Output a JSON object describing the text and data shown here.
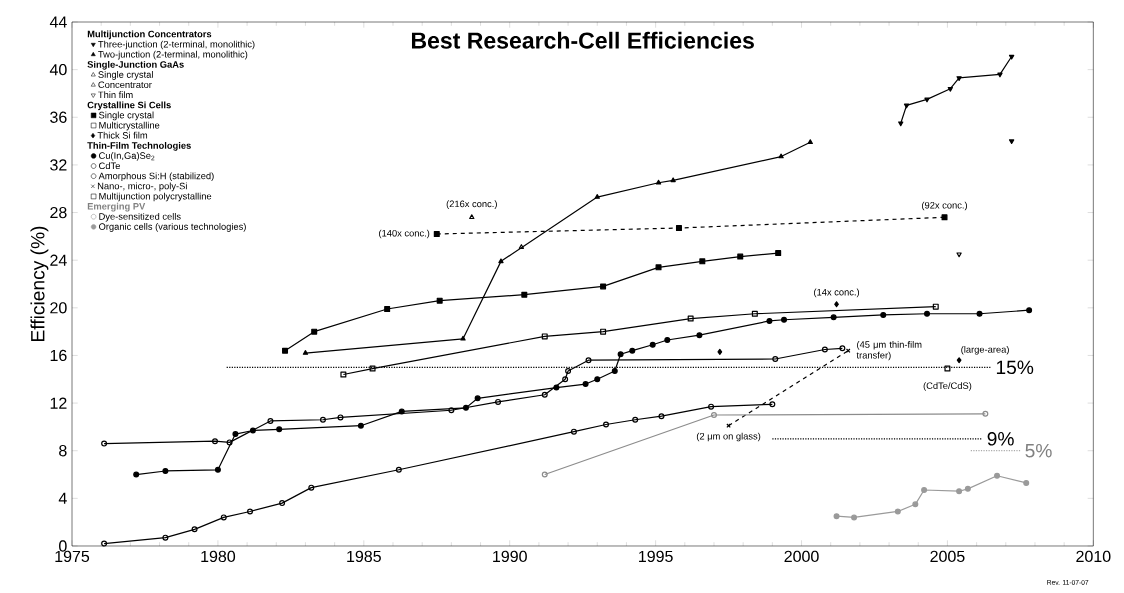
{
  "chart_data": {
    "type": "line",
    "title": "Best Research-Cell Efficiencies",
    "ylabel": "Efficiency (%)",
    "xlim": [
      1975,
      2010
    ],
    "xticks": [
      1975,
      1980,
      1985,
      1990,
      1995,
      2000,
      2005,
      2010
    ],
    "ylim": [
      0,
      44
    ],
    "yticks": [
      0,
      4,
      8,
      12,
      16,
      20,
      24,
      28,
      32,
      36,
      40,
      44
    ],
    "legend": "top left",
    "series": [
      {
        "name": "Three-junction (2-terminal, monolithic)",
        "color": "#000000",
        "marker": "triangle-down",
        "x": [
          2003.4,
          2003.6,
          2004.3,
          2005.1,
          2005.4,
          2006.8,
          2007.2
        ],
        "values": [
          35.5,
          37.0,
          37.5,
          38.4,
          39.3,
          39.6,
          41.1
        ]
      },
      {
        "name": "Two-junction (2-terminal, monolithic)",
        "color": "#000000",
        "marker": "triangle",
        "x": [
          1983.0,
          1988.4,
          1989.7,
          1993.0,
          1995.1,
          1995.6,
          1999.3,
          2000.3
        ],
        "values": [
          16.2,
          17.4,
          23.9,
          29.3,
          30.5,
          30.7,
          32.7,
          33.9
        ]
      },
      {
        "name": "Single crystal",
        "type": "scatter",
        "color": "#000000",
        "marker": "triangle-open",
        "x": [
          1990.4
        ],
        "values": [
          25.1
        ]
      },
      {
        "name": "Concentrator",
        "type": "scatter",
        "color": "#000000",
        "marker": "triangle-open",
        "x": [
          1988.7
        ],
        "values": [
          27.6
        ]
      },
      {
        "name": "Thin film",
        "type": "scatter",
        "color": "#000000",
        "marker": "triangle-down-open",
        "x": [
          2005.4
        ],
        "values": [
          24.5
        ]
      },
      {
        "name": "Single crystal",
        "color": "#000000",
        "marker": "square",
        "x": [
          1982.3,
          1983.3,
          1985.8,
          1987.6,
          1990.5,
          1993.2,
          1995.1,
          1996.6,
          1997.9,
          1999.2
        ],
        "values": [
          16.4,
          18.0,
          19.9,
          20.6,
          21.1,
          21.8,
          23.4,
          23.9,
          24.3,
          24.6
        ]
      },
      {
        "name": "Multicrystalline",
        "color": "#000000",
        "marker": "square-open",
        "x": [
          1984.3,
          1985.3,
          1991.2,
          1993.2,
          1996.2,
          1998.4,
          2004.6
        ],
        "values": [
          14.4,
          14.9,
          17.6,
          18.0,
          19.1,
          19.5,
          20.1
        ]
      },
      {
        "name": "Thick Si film",
        "type": "scatter",
        "color": "#000000",
        "marker": "diamond",
        "x": [
          1997.2,
          2005.4
        ],
        "values": [
          16.3,
          15.6
        ]
      },
      {
        "name": "Cu(In,Ga)Se$_{2}$",
        "color": "#000000",
        "marker": "circle",
        "x": [
          1977.2,
          1978.2,
          1980.0,
          1980.6,
          1981.2,
          1982.1,
          1984.9,
          1986.3,
          1988.5,
          1988.9,
          1991.6,
          1992.6,
          1993.0,
          1993.6,
          1993.8,
          1994.2,
          1994.9,
          1995.4,
          1996.5,
          1998.9,
          1999.4,
          2001.1,
          2002.8,
          2004.3,
          2006.1,
          2007.8
        ],
        "values": [
          6.0,
          6.3,
          6.4,
          9.4,
          9.7,
          9.8,
          10.1,
          11.3,
          11.6,
          12.4,
          13.3,
          13.6,
          14.0,
          14.7,
          16.1,
          16.4,
          16.9,
          17.3,
          17.7,
          18.9,
          19.0,
          19.2,
          19.4,
          19.5,
          19.5,
          19.8
        ]
      },
      {
        "name": "CdTe",
        "color": "#000000",
        "marker": "circle-open",
        "x": [
          1976.1,
          1979.9,
          1980.4,
          1981.8,
          1983.6,
          1984.2,
          1988.0,
          1989.6,
          1991.2,
          1991.9,
          1992.0,
          1992.7,
          1999.1,
          2000.8,
          2001.4
        ],
        "values": [
          8.6,
          8.8,
          8.7,
          10.5,
          10.6,
          10.8,
          11.4,
          12.1,
          12.7,
          14.0,
          14.7,
          15.6,
          15.7,
          16.5,
          16.6
        ]
      },
      {
        "name": "Amorphous Si:H (stabilized)",
        "color": "#000000",
        "marker": "circle-open",
        "x": [
          1976.1,
          1978.2,
          1979.2,
          1980.2,
          1981.1,
          1982.2,
          1983.2,
          1986.2,
          1992.2,
          1993.3,
          1994.3,
          1995.2,
          1996.9,
          1999.0
        ],
        "values": [
          0.2,
          0.7,
          1.4,
          2.4,
          2.9,
          3.6,
          4.9,
          6.4,
          9.6,
          10.2,
          10.6,
          10.9,
          11.7,
          11.9
        ]
      },
      {
        "name": "Nano-, micro-, poly-Si",
        "color": "#000000",
        "marker": "cross",
        "line_style": "dashed",
        "x": [
          1997.5,
          2001.6
        ],
        "values": [
          10.1,
          16.4
        ]
      },
      {
        "name": "Multijunction polycrystalline",
        "type": "scatter",
        "color": "#000000",
        "marker": "square-open",
        "x": [
          2005.0
        ],
        "values": [
          14.9
        ]
      },
      {
        "name": "Dye-sensitized cells",
        "color": "#8c8c8c",
        "marker": "circle-open",
        "x": [
          1991.2,
          1997.0,
          2006.3
        ],
        "values": [
          6.0,
          11.0,
          11.1
        ]
      },
      {
        "name": "Organic cells (various technologies)",
        "color": "#9a9a9a",
        "marker": "circle",
        "x": [
          2001.2,
          2001.8,
          2003.3,
          2003.9,
          2004.2,
          2005.4,
          2005.7,
          2006.7,
          2007.7
        ],
        "values": [
          2.5,
          2.4,
          2.9,
          3.5,
          4.7,
          4.6,
          4.8,
          5.9,
          5.3
        ]
      },
      {
        "type": "scatter",
        "color": "#000000",
        "marker": "triangle-down",
        "x": [
          2007.2
        ],
        "values": [
          34.0
        ]
      },
      {
        "color": "#000000",
        "marker": "square",
        "line_style": "dashed",
        "x": [
          1987.5,
          1995.8,
          2004.9
        ],
        "values": [
          26.2,
          26.7,
          27.6
        ]
      },
      {
        "type": "scatter",
        "color": "#000000",
        "marker": "diamond",
        "x": [
          2001.2
        ],
        "values": [
          20.3
        ]
      },
      {
        "color": "#000000",
        "marker": "none",
        "line_style": "dotted",
        "x": [
          1980.3,
          2006.5
        ],
        "values": [
          15,
          15
        ]
      },
      {
        "color": "#000000",
        "marker": "none",
        "line_style": "dotted",
        "x": [
          1999.0,
          2006.2
        ],
        "values": [
          9,
          9
        ]
      },
      {
        "color": "#aaaaaa",
        "marker": "none",
        "line_style": "dotted",
        "x": [
          2005.8,
          2007.5
        ],
        "values": [
          8,
          8
        ]
      }
    ],
    "annotations": [
      "Multijunction Concentrators",
      "Single-Junction GaAs",
      "Crystalline Si Cells",
      "Thin-Film Technologies",
      "Emerging PV",
      {
        "text": "(216x conc.)",
        "x": 1988.7,
        "y": 27.6
      },
      {
        "text": "(140x conc.)",
        "x": 1987.5,
        "y": 26.2
      },
      {
        "text": "(92x conc.)",
        "x": 2004.9,
        "y": 27.6
      },
      {
        "text": "(14x conc.)",
        "x": 2001.2,
        "y": 20.3
      },
      {
        "text": "(45 μm thin-film transfer)",
        "x": 2001.6,
        "y": 16.4
      },
      {
        "text": "(large-area)",
        "x": 2005.4,
        "y": 15.6
      },
      {
        "text": "(CdTe/CdS)",
        "x": 2005.0,
        "y": 14.9
      },
      {
        "text": "(2 μm on glass)",
        "x": 1997.5,
        "y": 10.1
      },
      {
        "text": "15%",
        "x": 2006.5,
        "y": 15
      },
      {
        "text": "9%",
        "x": 2006.2,
        "y": 9
      },
      {
        "text": "5%",
        "x": 2007.5,
        "y": 8
      },
      "Rev. 11-07-07"
    ]
  }
}
